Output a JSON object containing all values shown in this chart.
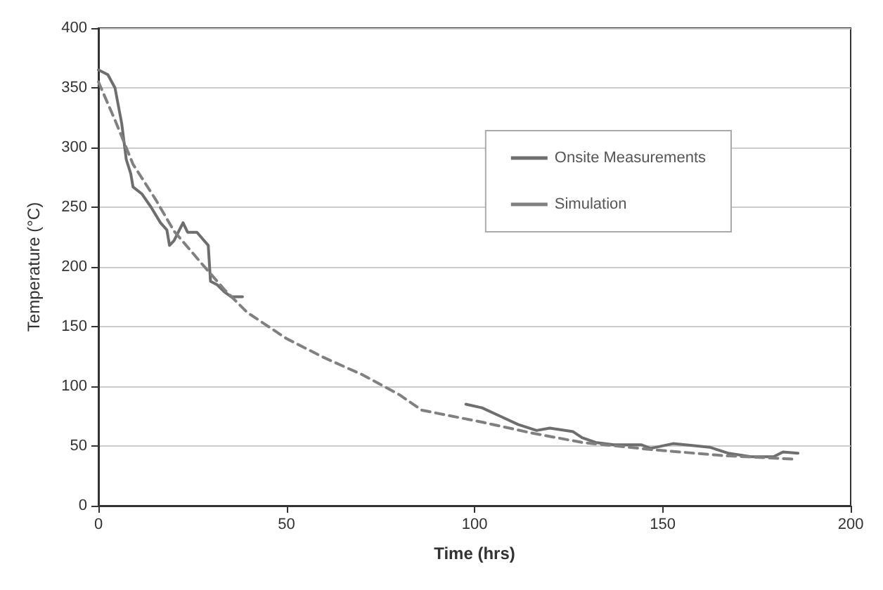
{
  "chart_data": {
    "type": "line",
    "xlabel": "Time (hrs)",
    "ylabel": "Temperature (°C)",
    "xlim": [
      0,
      200
    ],
    "xticks": [
      0,
      50,
      100,
      150,
      200
    ],
    "ylim": [
      0,
      400
    ],
    "yticks": [
      0,
      50,
      100,
      150,
      200,
      250,
      300,
      350,
      400
    ],
    "grid": "y",
    "legend": "top right",
    "marker": "none",
    "series": [
      {
        "name": "Onsite Measurements",
        "color": "#6e6e6e",
        "line_style": "solid",
        "x": [
          0,
          2.5,
          4.4,
          6.2,
          6.8,
          7.4,
          8.6,
          9.2,
          11.6,
          14,
          16.5,
          18.2,
          18.9,
          20.1,
          22.5,
          23.7,
          26.2,
          29.2,
          29.8,
          31.6,
          33.5,
          35.3,
          38.3,
          null,
          97.7,
          102,
          106.8,
          111.6,
          116.5,
          120,
          126.2,
          128.6,
          132.2,
          137.1,
          144.4,
          146.8,
          152.8,
          162.5,
          167.4,
          173.5,
          179.5,
          182,
          186
        ],
        "values": [
          365,
          361,
          350,
          320,
          305,
          290,
          278,
          267,
          261,
          250,
          237,
          231,
          218,
          222,
          237,
          229,
          229,
          218,
          188,
          185,
          179,
          175,
          175,
          null,
          85,
          82,
          75,
          68,
          63,
          65,
          62,
          57,
          53,
          51,
          51,
          48,
          52,
          49,
          44,
          41,
          41,
          45,
          44
        ]
      },
      {
        "name": "Simulation",
        "color": "#808080",
        "line_style": "dashed",
        "x": [
          0,
          4.4,
          9.2,
          15.3,
          20.1,
          27.4,
          33.5,
          39.5,
          50,
          60,
          70,
          80,
          86,
          102,
          115,
          128.6,
          147,
          166,
          185
        ],
        "values": [
          355,
          323,
          286,
          256,
          230,
          203,
          181,
          162,
          140,
          124,
          110,
          93,
          80,
          70,
          61,
          53,
          47,
          42,
          39
        ]
      }
    ]
  }
}
